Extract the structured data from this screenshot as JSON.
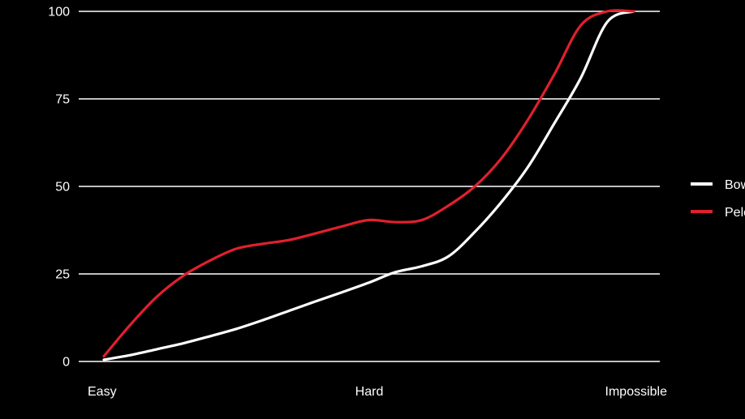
{
  "chart_data": {
    "type": "line",
    "title": "",
    "xlabel": "",
    "ylabel": "",
    "x_ticks": [
      "Easy",
      "Hard",
      "Impossible"
    ],
    "x_tick_positions": [
      0,
      5,
      10
    ],
    "xlim": [
      0,
      10
    ],
    "ylim": [
      0,
      100
    ],
    "y_ticks": [
      0,
      25,
      50,
      75,
      100
    ],
    "grid": "horizontal",
    "legend_position": "right",
    "background": "#000000",
    "series": [
      {
        "name": "Bowling",
        "color": "#ffffff",
        "x": [
          0,
          0.5,
          1,
          1.5,
          2,
          2.5,
          3,
          3.5,
          4,
          4.5,
          5,
          5.5,
          6,
          6.5,
          7,
          7.5,
          8,
          8.5,
          9,
          9.5,
          10
        ],
        "y": [
          0.5,
          1.8,
          3.5,
          5.2,
          7.2,
          9.3,
          11.8,
          14.5,
          17.2,
          19.8,
          22.5,
          25.5,
          27.2,
          30,
          37,
          45.5,
          55.5,
          68,
          81,
          97,
          100
        ]
      },
      {
        "name": "Peloton",
        "color": "#e0202e",
        "x": [
          0,
          0.5,
          1,
          1.5,
          2,
          2.5,
          3,
          3.5,
          4,
          4.5,
          5,
          5.5,
          6,
          6.5,
          7,
          7.5,
          8,
          8.5,
          9,
          9.5,
          10
        ],
        "y": [
          1.5,
          10.5,
          18.5,
          24.5,
          28.8,
          32.2,
          33.6,
          34.7,
          36.6,
          38.6,
          40.4,
          39.8,
          40.4,
          44.5,
          50,
          58,
          69,
          82,
          96,
          100,
          100
        ]
      }
    ]
  }
}
